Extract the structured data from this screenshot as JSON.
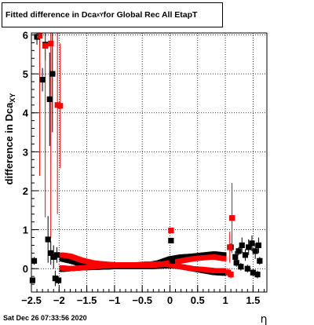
{
  "title": {
    "prefix": "Fitted difference in Dca",
    "sub": "xY",
    "suffix": " for Global Rec All EtapT"
  },
  "timestamp": "Sat Dec 26 07:33:56 2020",
  "colors": {
    "black_series": "#000000",
    "red_series": "#ff0000",
    "grid": "#000000"
  },
  "chart_data": {
    "type": "scatter",
    "xlabel": "η",
    "ylabel": "difference in Dca",
    "ylabel_sub": "XY",
    "xlim": [
      -2.5,
      1.75
    ],
    "ylim": [
      -0.6,
      6.05
    ],
    "grid": true,
    "x_ticks": [
      -2.5,
      -2,
      -1.5,
      -1,
      -0.5,
      0,
      0.5,
      1,
      1.5
    ],
    "x_tick_labels": [
      "−2.5",
      "−2",
      "−1.5",
      "−1",
      "−0.5",
      "0",
      "0.5",
      "1",
      "1.5"
    ],
    "y_ticks": [
      0,
      1,
      2,
      3,
      4,
      5,
      6
    ],
    "y_tick_labels": [
      "0",
      "1",
      "2",
      "3",
      "4",
      "5",
      "6"
    ],
    "series": [
      {
        "marker": "square",
        "color": "#000000",
        "points": [
          {
            "x": -2.48,
            "y": -0.3,
            "e": 0.05
          },
          {
            "x": -2.45,
            "y": 0.2,
            "e": 0.1
          },
          {
            "x": -2.4,
            "y": 5.95,
            "e": 0.2
          },
          {
            "x": -2.3,
            "y": 4.85,
            "e": 0.3
          },
          {
            "x": -2.25,
            "y": 5.75,
            "e": 0.4
          },
          {
            "x": -2.2,
            "y": 0.75,
            "e": 0.6
          },
          {
            "x": -2.17,
            "y": 4.35,
            "e": 1.2
          },
          {
            "x": -2.15,
            "y": 0.4,
            "e": 0.3
          },
          {
            "x": -2.12,
            "y": 5.0,
            "e": 1.5
          },
          {
            "x": -2.1,
            "y": 0.3,
            "e": 0.3
          },
          {
            "x": -2.07,
            "y": -0.25,
            "e": 0.2
          },
          {
            "x": -2.04,
            "y": 0.35,
            "e": 0.2
          },
          {
            "x": -2.01,
            "y": -0.3,
            "e": 0.1
          },
          {
            "x": 0.02,
            "y": 0.72,
            "e": 0.05
          },
          {
            "x": 0.04,
            "y": 0.2,
            "e": 0.05
          },
          {
            "x": 1.1,
            "y": 0.55,
            "e": 0.1
          },
          {
            "x": 1.18,
            "y": 0.3,
            "e": 0.15
          },
          {
            "x": 1.24,
            "y": 0.45,
            "e": 0.1
          },
          {
            "x": 1.3,
            "y": 0.6,
            "e": 0.2
          },
          {
            "x": 1.36,
            "y": 0.35,
            "e": 0.15
          },
          {
            "x": 1.42,
            "y": 0.55,
            "e": 0.2
          },
          {
            "x": 1.48,
            "y": 0.65,
            "e": 0.2
          },
          {
            "x": 1.54,
            "y": 0.45,
            "e": 0.2
          },
          {
            "x": 1.6,
            "y": 0.6,
            "e": 0.2
          },
          {
            "x": 1.62,
            "y": 0.2,
            "e": 0.1
          },
          {
            "x": 1.2,
            "y": 0.15,
            "e": 0.1
          },
          {
            "x": 1.28,
            "y": 0.05,
            "e": 0.1
          },
          {
            "x": 1.4,
            "y": 0.0,
            "e": 0.1
          },
          {
            "x": 1.5,
            "y": -0.1,
            "e": 0.1
          },
          {
            "x": 1.58,
            "y": -0.15,
            "e": 0.1
          }
        ],
        "band_upper": [
          [
            -1.95,
            0.25
          ],
          [
            -1.8,
            0.2
          ],
          [
            -1.6,
            0.12
          ],
          [
            -1.4,
            0.1
          ],
          [
            -1.2,
            0.08
          ],
          [
            -1.0,
            0.07
          ],
          [
            -0.8,
            0.07
          ],
          [
            -0.6,
            0.07
          ],
          [
            -0.4,
            0.1
          ],
          [
            -0.2,
            0.15
          ],
          [
            0.0,
            0.25
          ],
          [
            0.2,
            0.3
          ],
          [
            0.4,
            0.32
          ],
          [
            0.6,
            0.35
          ],
          [
            0.8,
            0.38
          ],
          [
            1.0,
            0.35
          ]
        ],
        "band_lower": [
          [
            -1.95,
            -0.02
          ],
          [
            -1.8,
            0.0
          ],
          [
            -1.6,
            0.02
          ],
          [
            -1.4,
            0.03
          ],
          [
            -1.2,
            0.04
          ],
          [
            -1.0,
            0.05
          ],
          [
            -0.8,
            0.05
          ],
          [
            -0.6,
            0.05
          ],
          [
            -0.4,
            0.05
          ],
          [
            -0.2,
            0.06
          ],
          [
            0.0,
            0.08
          ],
          [
            0.2,
            0.05
          ],
          [
            0.4,
            0.0
          ],
          [
            0.6,
            -0.05
          ],
          [
            0.8,
            -0.1
          ],
          [
            1.0,
            -0.12
          ]
        ]
      },
      {
        "marker": "square",
        "color": "#ff0000",
        "points": [
          {
            "x": -2.35,
            "y": 5.98,
            "e": 3.6
          },
          {
            "x": -2.25,
            "y": 5.72,
            "e": 4.4
          },
          {
            "x": -2.15,
            "y": 5.78,
            "e": 5.0
          },
          {
            "x": -2.03,
            "y": 4.2,
            "e": 2.8
          },
          {
            "x": -1.98,
            "y": 4.18,
            "e": 1.6
          },
          {
            "x": 0.02,
            "y": 0.98,
            "e": 0.05
          },
          {
            "x": 1.08,
            "y": 0.55,
            "e": 0.4
          },
          {
            "x": 1.12,
            "y": 1.3,
            "e": 0.9
          },
          {
            "x": 1.05,
            "y": -0.1,
            "e": 0.1
          },
          {
            "x": 1.1,
            "y": -0.15,
            "e": 0.1
          }
        ],
        "band_upper": [
          [
            -1.95,
            0.35
          ],
          [
            -1.8,
            0.32
          ],
          [
            -1.6,
            0.22
          ],
          [
            -1.4,
            0.15
          ],
          [
            -1.2,
            0.12
          ],
          [
            -1.0,
            0.1
          ],
          [
            -0.8,
            0.1
          ],
          [
            -0.6,
            0.1
          ],
          [
            -0.4,
            0.12
          ],
          [
            -0.2,
            0.12
          ],
          [
            0.0,
            0.1
          ],
          [
            0.2,
            0.05
          ],
          [
            0.4,
            0.0
          ],
          [
            0.6,
            -0.02
          ],
          [
            0.8,
            -0.05
          ],
          [
            1.0,
            -0.05
          ]
        ],
        "band_lower": [
          [
            -1.95,
            0.02
          ],
          [
            -1.8,
            0.0
          ],
          [
            -1.6,
            0.02
          ],
          [
            -1.4,
            0.05
          ],
          [
            -1.2,
            0.07
          ],
          [
            -1.0,
            0.08
          ],
          [
            -0.8,
            0.08
          ],
          [
            -0.6,
            0.08
          ],
          [
            -0.4,
            0.08
          ],
          [
            -0.2,
            0.1
          ],
          [
            0.0,
            0.15
          ],
          [
            0.2,
            0.2
          ],
          [
            0.4,
            0.25
          ],
          [
            0.6,
            0.28
          ],
          [
            0.8,
            0.3
          ],
          [
            1.0,
            0.25
          ]
        ]
      }
    ]
  }
}
